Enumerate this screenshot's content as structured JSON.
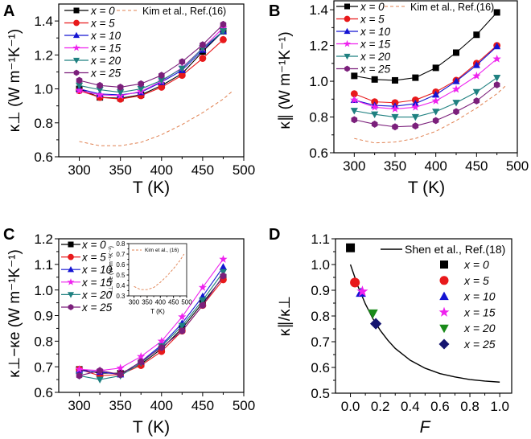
{
  "chart_data": [
    {
      "panel": "A",
      "type": "line",
      "xlabel": "T (K)",
      "ylabel": "κ⊥ (W m⁻¹K⁻¹)",
      "xlim": [
        275,
        500
      ],
      "ylim": [
        0.6,
        1.5
      ],
      "xticks": [
        300,
        350,
        400,
        450,
        500
      ],
      "yticks": [
        0.6,
        0.8,
        1.0,
        1.2,
        1.4
      ],
      "yfmt": 1,
      "x": [
        300,
        325,
        350,
        375,
        400,
        425,
        450,
        475
      ],
      "series": [
        {
          "name": "x = 0",
          "color": "#000000",
          "marker": "square",
          "values": [
            1.0,
            0.95,
            0.945,
            0.965,
            1.02,
            1.09,
            1.22,
            1.34
          ]
        },
        {
          "name": "x = 5",
          "color": "#e8191b",
          "marker": "circle",
          "values": [
            0.99,
            0.95,
            0.94,
            0.96,
            1.01,
            1.08,
            1.18,
            1.29
          ]
        },
        {
          "name": "x = 10",
          "color": "#1414d2",
          "marker": "triangle",
          "values": [
            1.0,
            0.97,
            0.965,
            0.98,
            1.04,
            1.11,
            1.23,
            1.34
          ]
        },
        {
          "name": "x = 15",
          "color": "#ee22ee",
          "marker": "star",
          "values": [
            0.99,
            0.965,
            0.96,
            0.985,
            1.045,
            1.125,
            1.24,
            1.36
          ]
        },
        {
          "name": "x = 20",
          "color": "#1f8080",
          "marker": "tri-down",
          "values": [
            1.02,
            0.995,
            0.98,
            1.0,
            1.05,
            1.12,
            1.24,
            1.34
          ]
        },
        {
          "name": "x = 25",
          "color": "#7b1f7b",
          "marker": "hexagon",
          "values": [
            1.05,
            1.02,
            1.01,
            1.03,
            1.08,
            1.16,
            1.26,
            1.38
          ]
        }
      ],
      "reference": {
        "name": "Kim et al., Ref.(16)",
        "color": "#e08050",
        "x": [
          300,
          325,
          350,
          375,
          400,
          425,
          450,
          475,
          487
        ],
        "values": [
          0.69,
          0.665,
          0.665,
          0.685,
          0.73,
          0.79,
          0.86,
          0.94,
          0.99
        ]
      },
      "legend": "top-left"
    },
    {
      "panel": "B",
      "type": "line",
      "xlabel": "T (K)",
      "ylabel": "κ∥ (W m⁻¹K⁻¹)",
      "xlim": [
        275,
        500
      ],
      "ylim": [
        0.6,
        1.45
      ],
      "xticks": [
        300,
        350,
        400,
        450,
        500
      ],
      "yticks": [
        0.6,
        0.8,
        1.0,
        1.2,
        1.4
      ],
      "yfmt": 1,
      "x": [
        300,
        325,
        350,
        375,
        400,
        425,
        450,
        475
      ],
      "series": [
        {
          "name": "x = 0",
          "color": "#000000",
          "marker": "square",
          "values": [
            1.03,
            1.01,
            1.005,
            1.02,
            1.075,
            1.16,
            1.26,
            1.385
          ]
        },
        {
          "name": "x = 5",
          "color": "#e8191b",
          "marker": "circle",
          "values": [
            0.93,
            0.885,
            0.88,
            0.895,
            0.94,
            1.005,
            1.1,
            1.2
          ]
        },
        {
          "name": "x = 10",
          "color": "#1414d2",
          "marker": "triangle",
          "values": [
            0.895,
            0.865,
            0.86,
            0.875,
            0.925,
            1.0,
            1.09,
            1.195
          ]
        },
        {
          "name": "x = 15",
          "color": "#ee22ee",
          "marker": "star",
          "values": [
            0.895,
            0.855,
            0.845,
            0.855,
            0.89,
            0.955,
            1.03,
            1.125
          ]
        },
        {
          "name": "x = 20",
          "color": "#1f8080",
          "marker": "tri-down",
          "values": [
            0.835,
            0.815,
            0.8,
            0.8,
            0.83,
            0.88,
            0.94,
            1.02
          ]
        },
        {
          "name": "x = 25",
          "color": "#7b1f7b",
          "marker": "hexagon",
          "values": [
            0.785,
            0.76,
            0.745,
            0.75,
            0.78,
            0.83,
            0.89,
            0.98
          ]
        }
      ],
      "reference": {
        "name": "Kim et al., Ref.(16)",
        "color": "#e08050",
        "x": [
          300,
          325,
          350,
          375,
          400,
          425,
          450,
          475,
          487
        ],
        "values": [
          0.68,
          0.655,
          0.66,
          0.68,
          0.72,
          0.78,
          0.85,
          0.93,
          0.98
        ]
      },
      "legend": "top-left"
    },
    {
      "panel": "C",
      "type": "line",
      "xlabel": "T (K)",
      "ylabel": "κ⊥−κe (W m⁻¹K⁻¹)",
      "xlim": [
        275,
        500
      ],
      "ylim": [
        0.6,
        1.2
      ],
      "xticks": [
        300,
        350,
        400,
        450,
        500
      ],
      "yticks": [
        0.6,
        0.7,
        0.8,
        0.9,
        1.0,
        1.1,
        1.2
      ],
      "yfmt": 1,
      "x": [
        300,
        325,
        350,
        375,
        400,
        425,
        450,
        475
      ],
      "series": [
        {
          "name": "x = 0",
          "color": "#000000",
          "marker": "square",
          "values": [
            0.69,
            0.675,
            0.675,
            0.71,
            0.77,
            0.85,
            0.95,
            1.05
          ]
        },
        {
          "name": "x = 5",
          "color": "#e8191b",
          "marker": "circle",
          "values": [
            0.69,
            0.665,
            0.67,
            0.705,
            0.76,
            0.84,
            0.94,
            1.04
          ]
        },
        {
          "name": "x = 10",
          "color": "#1414d2",
          "marker": "triangle",
          "values": [
            0.685,
            0.68,
            0.67,
            0.72,
            0.785,
            0.87,
            0.975,
            1.09
          ]
        },
        {
          "name": "x = 15",
          "color": "#ee22ee",
          "marker": "star",
          "values": [
            0.69,
            0.685,
            0.695,
            0.74,
            0.8,
            0.895,
            1.01,
            1.12
          ]
        },
        {
          "name": "x = 20",
          "color": "#1f8080",
          "marker": "tri-down",
          "values": [
            0.665,
            0.65,
            0.665,
            0.715,
            0.78,
            0.86,
            0.96,
            1.07
          ]
        },
        {
          "name": "x = 25",
          "color": "#7b1f7b",
          "marker": "hexagon",
          "values": [
            0.665,
            0.685,
            0.67,
            0.72,
            0.775,
            0.84,
            0.94,
            1.055
          ]
        }
      ],
      "legend": "top-left",
      "inset": {
        "xlabel": "T (K)",
        "ylabel": "κ⊥−κe (W m⁻¹K⁻¹)",
        "xlim": [
          280,
          500
        ],
        "ylim": [
          0.3,
          0.8
        ],
        "xticks": [
          300,
          350,
          400,
          450,
          500
        ],
        "yticks": [
          0.3,
          0.4,
          0.5,
          0.6,
          0.7,
          0.8
        ],
        "reference": {
          "name": "Kim et al., (16)",
          "color": "#e08050",
          "x": [
            300,
            325,
            350,
            375,
            400,
            425,
            450,
            475,
            490
          ],
          "values": [
            0.39,
            0.36,
            0.36,
            0.38,
            0.43,
            0.49,
            0.56,
            0.64,
            0.7
          ]
        }
      }
    },
    {
      "panel": "D",
      "type": "scatter",
      "xlabel": "F",
      "ylabel": "κ∥/κ⊥",
      "xlim": [
        -0.1,
        1.08
      ],
      "ylim": [
        0.5,
        1.1
      ],
      "xticks": [
        0.0,
        0.2,
        0.4,
        0.6,
        0.8,
        1.0
      ],
      "yticks": [
        0.5,
        0.6,
        0.7,
        0.8,
        0.9,
        1.0,
        1.1
      ],
      "yfmt": 1,
      "points": [
        {
          "name": "x = 0",
          "color": "#000000",
          "marker": "square",
          "x": 0.0,
          "y": 1.065
        },
        {
          "name": "x = 5",
          "color": "#e8191b",
          "marker": "circle",
          "x": 0.03,
          "y": 0.93
        },
        {
          "name": "x = 10",
          "color": "#1414d2",
          "marker": "triangle",
          "x": 0.07,
          "y": 0.89
        },
        {
          "name": "x = 15",
          "color": "#ee22ee",
          "marker": "star",
          "x": 0.08,
          "y": 0.895
        },
        {
          "name": "x = 20",
          "color": "#1a8a1a",
          "marker": "tri-down",
          "x": 0.15,
          "y": 0.81
        },
        {
          "name": "x = 25",
          "color": "#151570",
          "marker": "diamond",
          "x": 0.17,
          "y": 0.77
        }
      ],
      "reference": {
        "name": "Shen et al., Ref.(18)",
        "color": "#000000",
        "x": [
          0,
          0.05,
          0.1,
          0.15,
          0.2,
          0.25,
          0.3,
          0.4,
          0.5,
          0.6,
          0.7,
          0.8,
          0.9,
          1.0
        ],
        "values": [
          1.0,
          0.916,
          0.847,
          0.79,
          0.744,
          0.706,
          0.674,
          0.628,
          0.597,
          0.576,
          0.563,
          0.553,
          0.547,
          0.543
        ]
      },
      "legend": "top-right"
    }
  ]
}
